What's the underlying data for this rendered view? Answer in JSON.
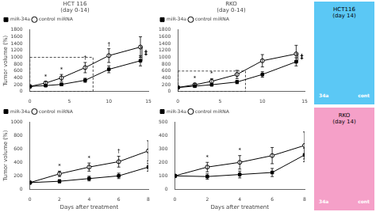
{
  "chart_data": [
    {
      "type": "line",
      "title": "HCT 116\n(day 0-14)",
      "ylabel": "Tumor volume (%)",
      "x": [
        0,
        2,
        4,
        7,
        10,
        14
      ],
      "series": [
        {
          "name": "miR-34a",
          "color": "black",
          "marker": "square",
          "values": [
            150,
            175,
            210,
            330,
            650,
            900
          ],
          "errors": [
            20,
            30,
            40,
            60,
            100,
            150
          ]
        },
        {
          "name": "control miRNA",
          "color": "black",
          "marker": "circle-open",
          "values": [
            150,
            250,
            400,
            700,
            1050,
            1300
          ],
          "errors": [
            20,
            50,
            100,
            150,
            200,
            300
          ]
        }
      ],
      "xlim": [
        0,
        15
      ],
      "xticks": [
        0,
        5,
        10,
        15
      ],
      "ylim": [
        0,
        1800
      ],
      "yticks": [
        0,
        200,
        400,
        600,
        800,
        1000,
        1200,
        1400,
        1600,
        1800
      ],
      "legend": "upper left",
      "grid": false,
      "annotations": [
        {
          "x": 2,
          "y": 354,
          "text": "*"
        },
        {
          "x": 4,
          "y": 554,
          "text": "*"
        },
        {
          "x": 7,
          "y": 904,
          "text": "†"
        },
        {
          "x": 10,
          "y": 1304,
          "text": "†"
        }
      ],
      "box": {
        "x": [
          0,
          8
        ],
        "y": [
          0,
          1000
        ]
      },
      "bracket": {
        "x": 14.2,
        "y": [
          900,
          1300
        ],
        "label": "‡"
      }
    },
    {
      "type": "line",
      "title": "RKO\n(day 0-14)",
      "x": [
        0,
        2,
        4,
        7,
        10,
        14
      ],
      "series": [
        {
          "name": "miR-34a",
          "color": "black",
          "marker": "square",
          "values": [
            120,
            160,
            200,
            280,
            500,
            870
          ],
          "errors": [
            15,
            25,
            35,
            50,
            80,
            120
          ]
        },
        {
          "name": "control miRNA",
          "color": "black",
          "marker": "circle-open",
          "values": [
            120,
            200,
            300,
            500,
            900,
            1100
          ],
          "errors": [
            15,
            40,
            80,
            120,
            180,
            250
          ]
        }
      ],
      "xlim": [
        0,
        15
      ],
      "xticks": [
        0,
        5,
        10,
        15
      ],
      "ylim": [
        0,
        1800
      ],
      "yticks": [
        0,
        200,
        400,
        600,
        800,
        1000,
        1200,
        1400,
        1600,
        1800
      ],
      "legend": "upper left",
      "grid": false,
      "annotations": [
        {
          "x": 2,
          "y": 294,
          "text": "*"
        },
        {
          "x": 4,
          "y": 434,
          "text": "*"
        }
      ],
      "box": {
        "x": [
          0,
          8
        ],
        "y": [
          0,
          600
        ]
      },
      "bracket": {
        "x": 14.2,
        "y": [
          870,
          1100
        ],
        "label": "‡"
      }
    },
    {
      "type": "line",
      "ylabel": "Tumor volume (%)",
      "xlabel": "Days after treatment",
      "x": [
        0,
        2,
        4,
        6,
        8
      ],
      "series": [
        {
          "name": "miR-34a",
          "color": "black",
          "marker": "square",
          "values": [
            100,
            120,
            160,
            200,
            330
          ],
          "errors": [
            15,
            25,
            35,
            40,
            60
          ]
        },
        {
          "name": "control miRNA",
          "color": "black",
          "marker": "circle-open",
          "values": [
            100,
            230,
            330,
            410,
            570
          ],
          "errors": [
            15,
            40,
            60,
            80,
            150
          ]
        }
      ],
      "xlim": [
        0,
        8
      ],
      "xticks": [
        0,
        2,
        4,
        6,
        8
      ],
      "ylim": [
        0,
        1000
      ],
      "yticks": [
        0,
        200,
        400,
        600,
        800,
        1000
      ],
      "legend": "upper left",
      "grid": false,
      "annotations": [
        {
          "x": 2,
          "y": 300,
          "text": "*"
        },
        {
          "x": 4,
          "y": 420,
          "text": "*"
        },
        {
          "x": 6,
          "y": 520,
          "text": "†"
        }
      ]
    },
    {
      "type": "line",
      "xlabel": "Days after treatment",
      "x": [
        0,
        2,
        4,
        6,
        8
      ],
      "series": [
        {
          "name": "miR-34a",
          "color": "black",
          "marker": "square",
          "values": [
            100,
            95,
            110,
            125,
            255
          ],
          "errors": [
            10,
            20,
            25,
            30,
            50
          ]
        },
        {
          "name": "control miRNA",
          "color": "black",
          "marker": "circle-open",
          "values": [
            100,
            165,
            200,
            250,
            325
          ],
          "errors": [
            10,
            35,
            50,
            60,
            100
          ]
        }
      ],
      "xlim": [
        0,
        8
      ],
      "xticks": [
        0,
        2,
        4,
        6,
        8
      ],
      "ylim": [
        0,
        500
      ],
      "yticks": [
        0,
        100,
        200,
        300,
        400,
        500
      ],
      "legend": "upper left",
      "grid": false,
      "annotations": [
        {
          "x": 2,
          "y": 215,
          "text": "*"
        },
        {
          "x": 4,
          "y": 265,
          "text": "*"
        }
      ]
    },
    {
      "type": "photo",
      "title": "HCT116\n(day 14)",
      "color": "#5BC8F5",
      "labels": [
        "34a",
        "cont"
      ]
    },
    {
      "type": "photo",
      "title": "RKO\n(day 14)",
      "color": "#F5A0C8",
      "labels": [
        "34a",
        "cont"
      ]
    }
  ]
}
